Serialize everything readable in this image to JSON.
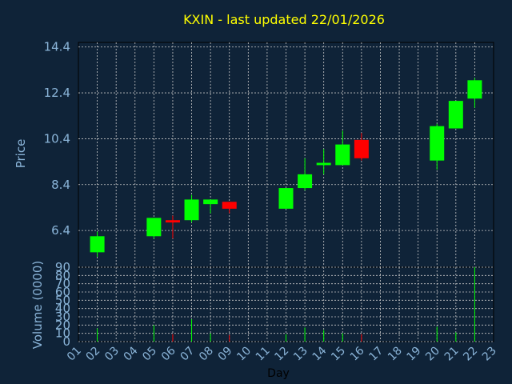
{
  "title": "KXIN - last updated 22/01/2026",
  "colors": {
    "background": "#0f2338",
    "up": "#00ff00",
    "down": "#ff0000",
    "grid": "#c8c8c8",
    "tick": "#8ab4d8",
    "title": "#ffff00",
    "frame": "#000000"
  },
  "chart_data": [
    {
      "type": "candlestick",
      "ylabel": "Price",
      "ylim": [
        4.8,
        14.6
      ],
      "yticks": [
        "6.4",
        "8.4",
        "10.4",
        "12.4",
        "14.4"
      ],
      "grid": true,
      "candles": [
        {
          "day": "02",
          "open": 5.45,
          "high": 6.35,
          "low": 5.25,
          "close": 6.15
        },
        {
          "day": "05",
          "open": 6.15,
          "high": 6.95,
          "low": 6.05,
          "close": 6.95
        },
        {
          "day": "06",
          "open": 6.85,
          "high": 7.05,
          "low": 6.05,
          "close": 6.75
        },
        {
          "day": "07",
          "open": 6.85,
          "high": 7.95,
          "low": 6.75,
          "close": 7.75
        },
        {
          "day": "08",
          "open": 7.55,
          "high": 7.75,
          "low": 7.15,
          "close": 7.75
        },
        {
          "day": "09",
          "open": 7.65,
          "high": 7.65,
          "low": 7.15,
          "close": 7.35
        },
        {
          "day": "12",
          "open": 7.35,
          "high": 8.25,
          "low": 7.35,
          "close": 8.25
        },
        {
          "day": "13",
          "open": 8.25,
          "high": 9.55,
          "low": 8.15,
          "close": 8.85
        },
        {
          "day": "14",
          "open": 9.25,
          "high": 9.95,
          "low": 8.85,
          "close": 9.35
        },
        {
          "day": "15",
          "open": 9.25,
          "high": 10.75,
          "low": 9.25,
          "close": 10.15
        },
        {
          "day": "16",
          "open": 10.35,
          "high": 10.65,
          "low": 9.45,
          "close": 9.55
        },
        {
          "day": "20",
          "open": 9.45,
          "high": 11.05,
          "low": 9.05,
          "close": 10.95
        },
        {
          "day": "21",
          "open": 10.85,
          "high": 12.05,
          "low": 10.85,
          "close": 12.05
        },
        {
          "day": "22",
          "open": 12.15,
          "high": 13.05,
          "low": 11.75,
          "close": 12.95
        }
      ]
    },
    {
      "type": "bar",
      "ylabel": "Volume (0000)",
      "xlabel": "Day",
      "ylim": [
        0,
        90
      ],
      "yticks": [
        "0",
        "10",
        "20",
        "30",
        "40",
        "50",
        "60",
        "70",
        "80",
        "90"
      ],
      "categories": [
        "01",
        "02",
        "03",
        "04",
        "05",
        "06",
        "07",
        "08",
        "09",
        "10",
        "11",
        "12",
        "13",
        "14",
        "15",
        "16",
        "17",
        "18",
        "19",
        "20",
        "21",
        "22",
        "23"
      ],
      "bars": [
        {
          "day": "02",
          "value": 16,
          "dir": "up"
        },
        {
          "day": "05",
          "value": 20,
          "dir": "up"
        },
        {
          "day": "06",
          "value": 9,
          "dir": "down"
        },
        {
          "day": "07",
          "value": 27,
          "dir": "up"
        },
        {
          "day": "08",
          "value": 10,
          "dir": "up"
        },
        {
          "day": "09",
          "value": 8,
          "dir": "down"
        },
        {
          "day": "12",
          "value": 9,
          "dir": "up"
        },
        {
          "day": "13",
          "value": 17,
          "dir": "up"
        },
        {
          "day": "14",
          "value": 14,
          "dir": "up"
        },
        {
          "day": "15",
          "value": 10,
          "dir": "up"
        },
        {
          "day": "16",
          "value": 9,
          "dir": "down"
        },
        {
          "day": "20",
          "value": 18,
          "dir": "up"
        },
        {
          "day": "21",
          "value": 11,
          "dir": "up"
        },
        {
          "day": "22",
          "value": 90,
          "dir": "up"
        }
      ]
    }
  ]
}
